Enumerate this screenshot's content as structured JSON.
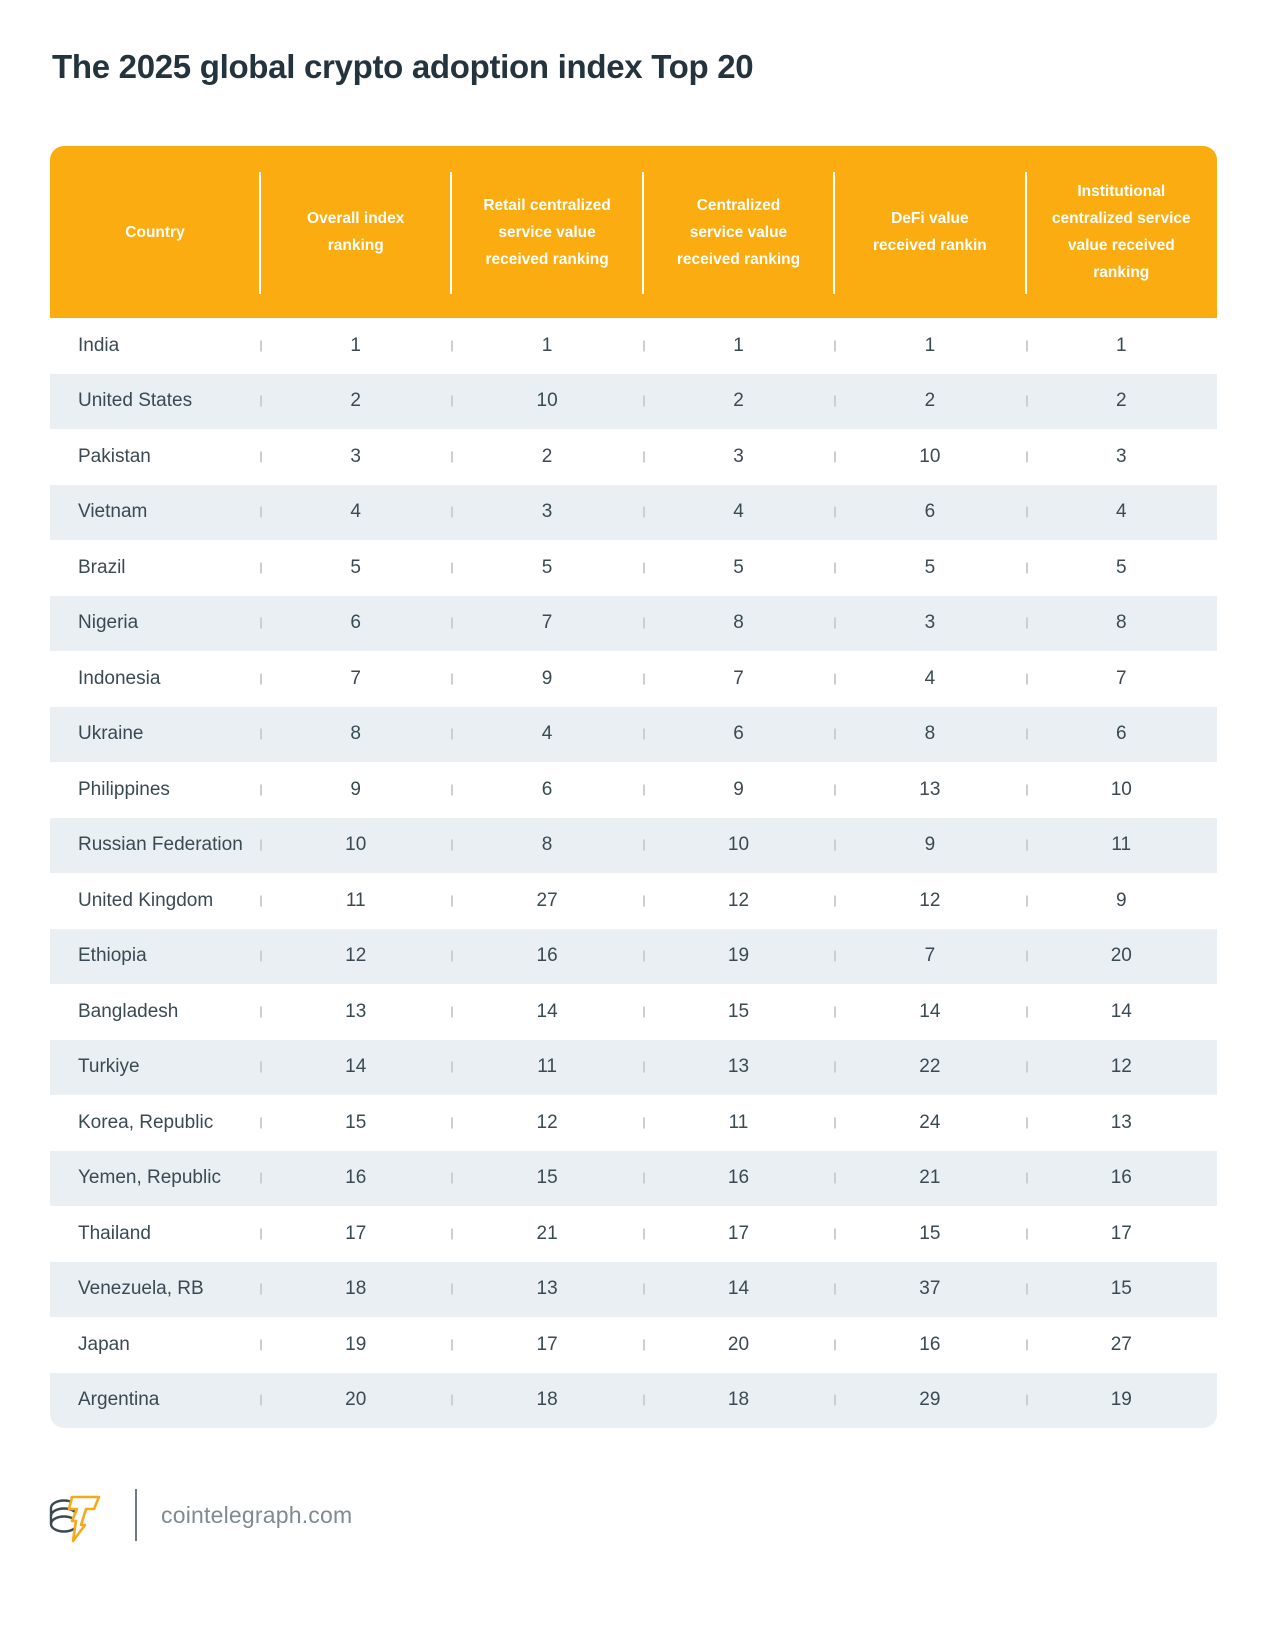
{
  "chart_data": {
    "type": "table",
    "title": "The 2025 global crypto adoption index Top 20",
    "columns": [
      "Country",
      "Overall index ranking",
      "Retail centralized service value received ranking",
      "Centralized service value received ranking",
      "DeFi value received rankin",
      "Institutional centralized service value received ranking"
    ],
    "rows": [
      [
        "India",
        1,
        1,
        1,
        1,
        1
      ],
      [
        "United States",
        2,
        10,
        2,
        2,
        2
      ],
      [
        "Pakistan",
        3,
        2,
        3,
        10,
        3
      ],
      [
        "Vietnam",
        4,
        3,
        4,
        6,
        4
      ],
      [
        "Brazil",
        5,
        5,
        5,
        5,
        5
      ],
      [
        "Nigeria",
        6,
        7,
        8,
        3,
        8
      ],
      [
        "Indonesia",
        7,
        9,
        7,
        4,
        7
      ],
      [
        "Ukraine",
        8,
        4,
        6,
        8,
        6
      ],
      [
        "Philippines",
        9,
        6,
        9,
        13,
        10
      ],
      [
        "Russian Federation",
        10,
        8,
        10,
        9,
        11
      ],
      [
        "United Kingdom",
        11,
        27,
        12,
        12,
        9
      ],
      [
        "Ethiopia",
        12,
        16,
        19,
        7,
        20
      ],
      [
        "Bangladesh",
        13,
        14,
        15,
        14,
        14
      ],
      [
        "Turkiye",
        14,
        11,
        13,
        22,
        12
      ],
      [
        "Korea, Republic",
        15,
        12,
        11,
        24,
        13
      ],
      [
        "Yemen, Republic",
        16,
        15,
        16,
        21,
        16
      ],
      [
        "Thailand",
        17,
        21,
        17,
        15,
        17
      ],
      [
        "Venezuela, RB",
        18,
        13,
        14,
        37,
        15
      ],
      [
        "Japan",
        19,
        17,
        20,
        16,
        27
      ],
      [
        "Argentina",
        20,
        18,
        18,
        29,
        19
      ]
    ],
    "layout": {
      "header_background": "#FAAC11",
      "row_stripe_color": "#E9EFF2",
      "striped_rows": "even",
      "grid": "off"
    }
  },
  "footer": {
    "source": "cointelegraph.com",
    "logo": "cointelegraph-logo"
  },
  "colors": {
    "header_bg": "#FAAC11",
    "row_stripe": "#E9EFF2",
    "body_text": "#3A4A52",
    "title_text": "#24343E",
    "tick": "#C9CFD2",
    "footer_text": "#7E8B92"
  }
}
